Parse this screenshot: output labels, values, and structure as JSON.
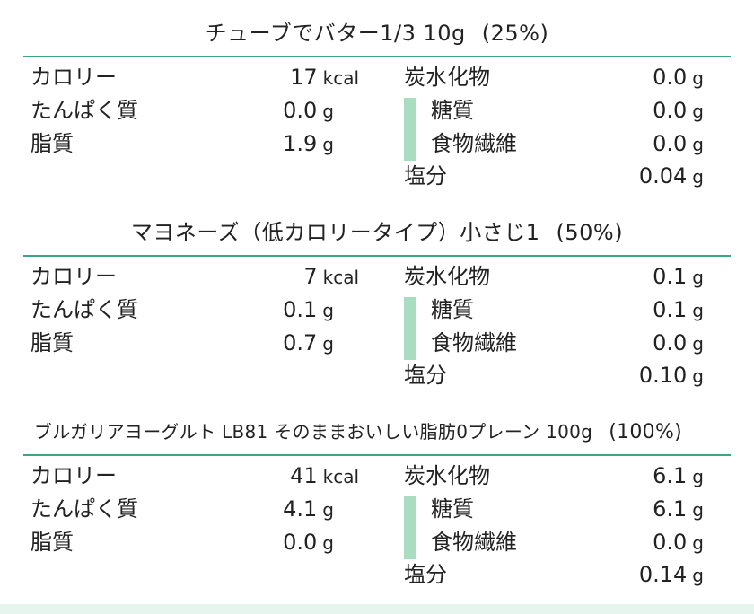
{
  "foods": [
    {
      "name": "チューブでバター1/3 10g",
      "percent": "(25%)",
      "calories": {
        "label": "カロリー",
        "value": "17",
        "unit": "kcal"
      },
      "protein": {
        "label": "たんぱく質",
        "value": "0.0",
        "unit": "g"
      },
      "fat": {
        "label": "脂質",
        "value": "1.9",
        "unit": "g"
      },
      "carbs": {
        "label": "炭水化物",
        "value": "0.0",
        "unit": "g"
      },
      "sugar": {
        "label": "糖質",
        "value": "0.0",
        "unit": "g"
      },
      "fiber": {
        "label": "食物繊維",
        "value": "0.0",
        "unit": "g"
      },
      "salt": {
        "label": "塩分",
        "value": "0.04",
        "unit": "g"
      }
    },
    {
      "name": "マヨネーズ（低カロリータイプ）小さじ1",
      "percent": "(50%)",
      "calories": {
        "label": "カロリー",
        "value": "7",
        "unit": "kcal"
      },
      "protein": {
        "label": "たんぱく質",
        "value": "0.1",
        "unit": "g"
      },
      "fat": {
        "label": "脂質",
        "value": "0.7",
        "unit": "g"
      },
      "carbs": {
        "label": "炭水化物",
        "value": "0.1",
        "unit": "g"
      },
      "sugar": {
        "label": "糖質",
        "value": "0.1",
        "unit": "g"
      },
      "fiber": {
        "label": "食物繊維",
        "value": "0.0",
        "unit": "g"
      },
      "salt": {
        "label": "塩分",
        "value": "0.10",
        "unit": "g"
      }
    },
    {
      "name": "ブルガリアヨーグルト LB81 そのままおいしい脂肪0プレーン 100g",
      "percent": "(100%)",
      "calories": {
        "label": "カロリー",
        "value": "41",
        "unit": "kcal"
      },
      "protein": {
        "label": "たんぱく質",
        "value": "4.1",
        "unit": "g"
      },
      "fat": {
        "label": "脂質",
        "value": "0.0",
        "unit": "g"
      },
      "carbs": {
        "label": "炭水化物",
        "value": "6.1",
        "unit": "g"
      },
      "sugar": {
        "label": "糖質",
        "value": "6.1",
        "unit": "g"
      },
      "fiber": {
        "label": "食物繊維",
        "value": "0.0",
        "unit": "g"
      },
      "salt": {
        "label": "塩分",
        "value": "0.14",
        "unit": "g"
      }
    }
  ],
  "colors": {
    "rule": "#3aa682",
    "sub_bar": "#a9dcc0",
    "bottom_band": "#e6f6ee"
  }
}
